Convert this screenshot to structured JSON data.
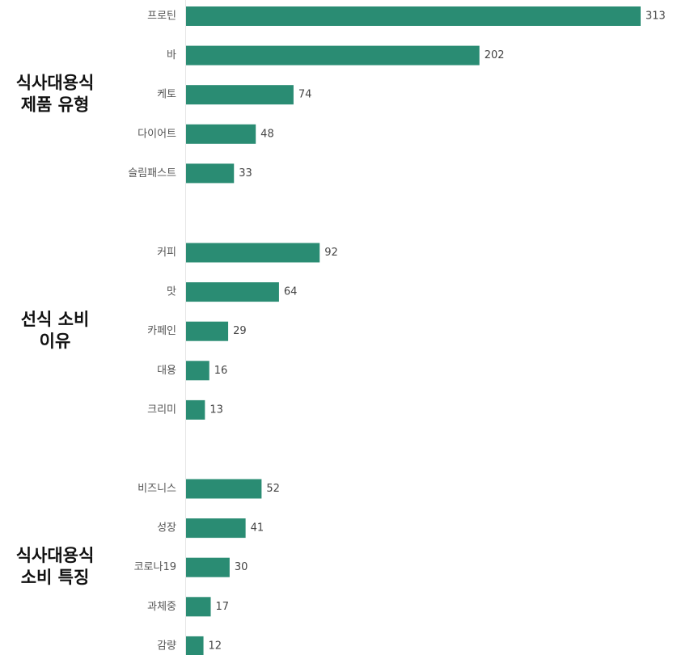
{
  "chart_data": {
    "type": "bar",
    "orientation": "horizontal",
    "bar_color": "#2a8c73",
    "groups": [
      {
        "title": [
          "식사대용식",
          "제품 유형"
        ],
        "categories": [
          "프로틴",
          "바",
          "케토",
          "다이어트",
          "슬림패스트"
        ],
        "values": [
          313,
          202,
          74,
          48,
          33
        ]
      },
      {
        "title": [
          "선식 소비",
          "이유"
        ],
        "categories": [
          "커피",
          "맛",
          "카페인",
          "대용",
          "크리미"
        ],
        "values": [
          92,
          64,
          29,
          16,
          13
        ]
      },
      {
        "title": [
          "식사대용식",
          "소비 특징"
        ],
        "categories": [
          "비즈니스",
          "성장",
          "코로나19",
          "과체중",
          "감량"
        ],
        "values": [
          52,
          41,
          30,
          17,
          12
        ]
      }
    ],
    "xlim": [
      0,
      313
    ],
    "grid": false,
    "legend": "none"
  }
}
